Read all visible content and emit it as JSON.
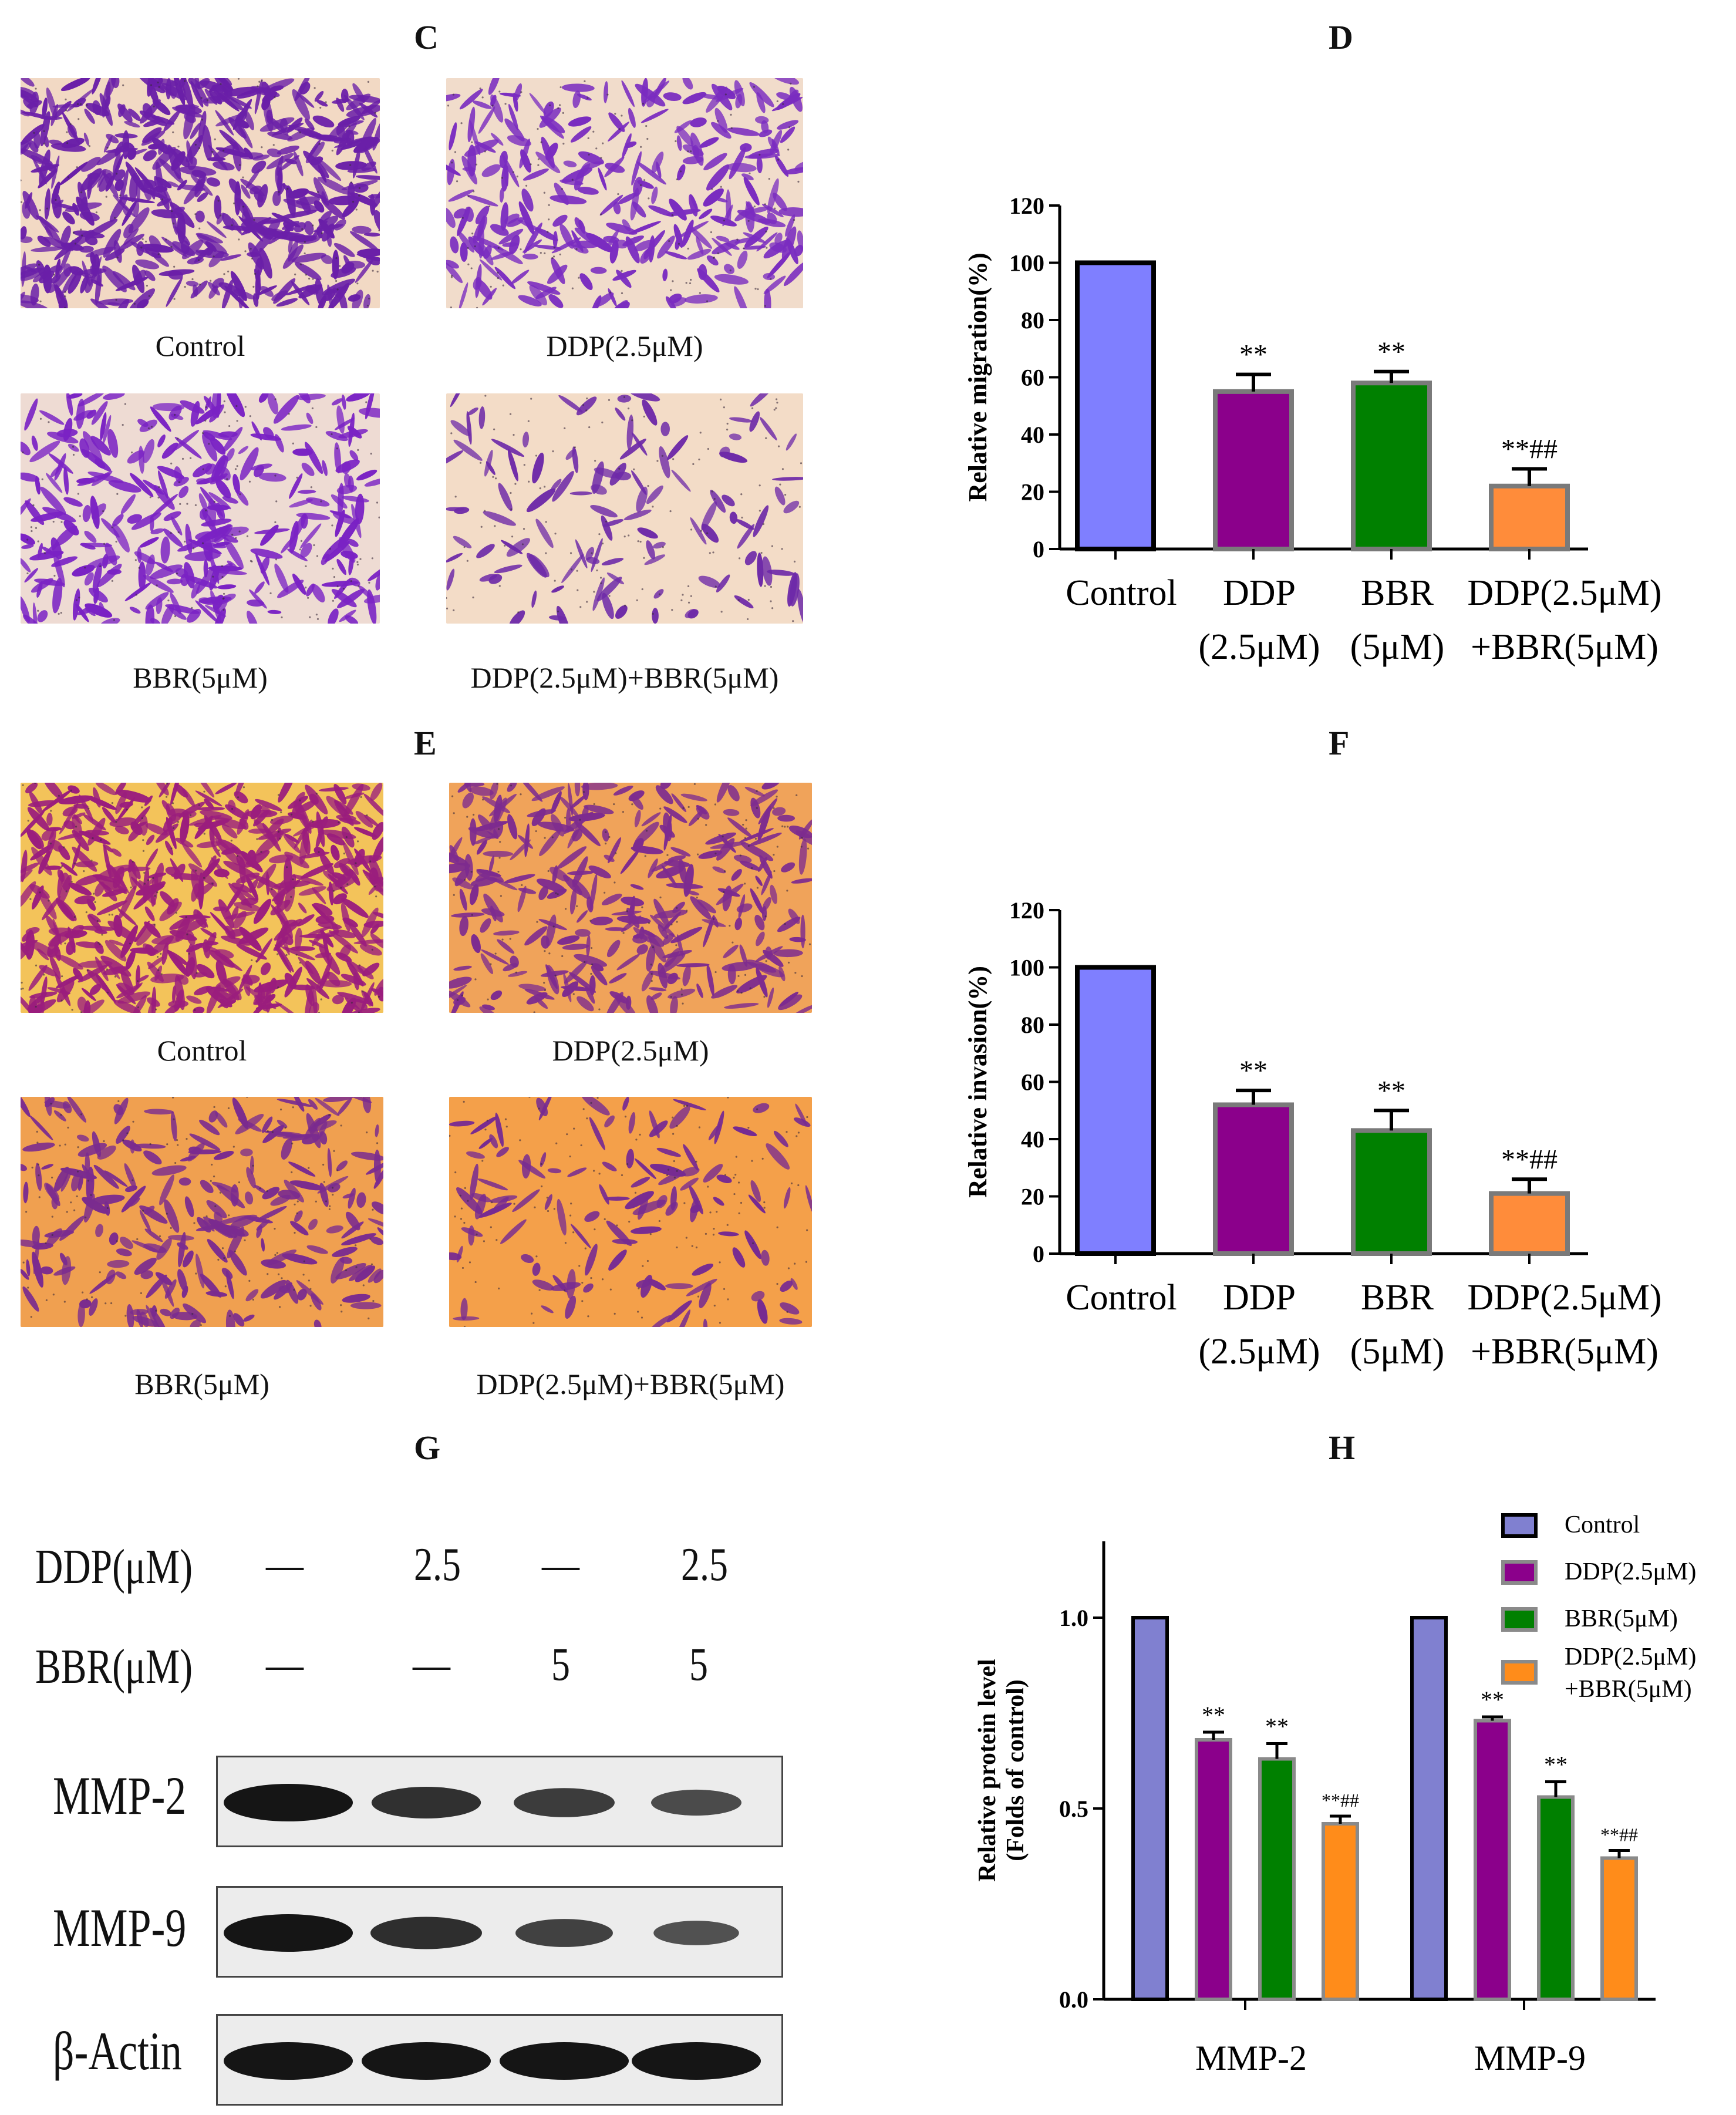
{
  "panels": {
    "C": "C",
    "D": "D",
    "E": "E",
    "F": "F",
    "G": "G",
    "H": "H"
  },
  "micrographs": {
    "migration": [
      {
        "caption": "Control",
        "bg": "#f2d9c4",
        "cell": "#6a1fa8",
        "density": 1.0
      },
      {
        "caption": "DDP(2.5μM)",
        "bg": "#f1dccb",
        "cell": "#7a2cc0",
        "density": 0.55
      },
      {
        "caption": "BBR(5μM)",
        "bg": "#eedbd3",
        "cell": "#7a22c4",
        "density": 0.6
      },
      {
        "caption": "DDP(2.5μM)+BBR(5μM)",
        "bg": "#f3dcc7",
        "cell": "#6e2aa8",
        "density": 0.22
      }
    ],
    "invasion": [
      {
        "caption": "Control",
        "bg": "#f3c35a",
        "cell": "#9a1d7d",
        "density": 1.0
      },
      {
        "caption": "DDP(2.5μM)",
        "bg": "#f0a35a",
        "cell": "#7d2b8f",
        "density": 0.55
      },
      {
        "caption": "BBR(5μM)",
        "bg": "#f0a050",
        "cell": "#7a2b8f",
        "density": 0.45
      },
      {
        "caption": "DDP(2.5μM)+BBR(5μM)",
        "bg": "#f4a04a",
        "cell": "#762a92",
        "density": 0.22
      }
    ]
  },
  "western_blot": {
    "row_labels": [
      "DDP(μM)",
      "BBR(μM)"
    ],
    "ddp_values": [
      "—",
      "2.5",
      "—",
      "2.5"
    ],
    "bbr_values": [
      "—",
      "—",
      "5",
      "5"
    ],
    "proteins": [
      {
        "label": "MMP-2",
        "intensity": [
          1.0,
          0.72,
          0.6,
          0.45
        ]
      },
      {
        "label": "MMP-9",
        "intensity": [
          1.0,
          0.75,
          0.55,
          0.38
        ]
      },
      {
        "label": "β-Actin",
        "intensity": [
          1.0,
          1.0,
          1.0,
          1.0
        ]
      }
    ]
  },
  "chart_data": [
    {
      "panel": "D",
      "type": "bar",
      "ylabel": "Relative migration(%)",
      "ylim": [
        0,
        120
      ],
      "yticks": [
        0,
        20,
        40,
        60,
        80,
        100,
        120
      ],
      "categories": [
        [
          "Control"
        ],
        [
          "DDP",
          "(2.5μM)"
        ],
        [
          "BBR",
          "(5μM)"
        ],
        [
          "DDP(2.5μM)",
          "+BBR(5μM)"
        ]
      ],
      "values": [
        100,
        55,
        58,
        22
      ],
      "errors": [
        0,
        6,
        4,
        6
      ],
      "annotations": [
        "",
        "**",
        "**",
        "**##"
      ],
      "colors": [
        "#7f7fff",
        "#8b008b",
        "#008000",
        "#ff8c3a"
      ]
    },
    {
      "panel": "F",
      "type": "bar",
      "ylabel": "Relative invasion(%)",
      "ylim": [
        0,
        120
      ],
      "yticks": [
        0,
        20,
        40,
        60,
        80,
        100,
        120
      ],
      "categories": [
        [
          "Control"
        ],
        [
          "DDP",
          "(2.5μM)"
        ],
        [
          "BBR",
          "(5μM)"
        ],
        [
          "DDP(2.5μM)",
          "+BBR(5μM)"
        ]
      ],
      "values": [
        100,
        52,
        43,
        21
      ],
      "errors": [
        0,
        5,
        7,
        5
      ],
      "annotations": [
        "",
        "**",
        "**",
        "**##"
      ],
      "colors": [
        "#7f7fff",
        "#8b008b",
        "#008000",
        "#ff8c3a"
      ]
    },
    {
      "panel": "H",
      "type": "bar",
      "ylabel": [
        "Relative protein level",
        "(Folds of control)"
      ],
      "ylim": [
        0,
        1.2
      ],
      "yticks": [
        0.0,
        0.5,
        1.0
      ],
      "ytick_labels": [
        "0.0",
        "0.5",
        "1.0"
      ],
      "categories": [
        "MMP-2",
        "MMP-9"
      ],
      "series": [
        {
          "name": "Control",
          "values": [
            1.0,
            1.0
          ],
          "errors": [
            0,
            0
          ],
          "annotations": [
            "",
            ""
          ],
          "color": "#8080d0"
        },
        {
          "name": "DDP(2.5μM)",
          "values": [
            0.68,
            0.73
          ],
          "errors": [
            0.02,
            0.01
          ],
          "annotations": [
            "**",
            "**"
          ],
          "color": "#8b008b"
        },
        {
          "name": "BBR(5μM)",
          "values": [
            0.63,
            0.53
          ],
          "errors": [
            0.04,
            0.04
          ],
          "annotations": [
            "**",
            "**"
          ],
          "color": "#008000"
        },
        {
          "name": [
            "DDP(2.5μM)",
            "+BBR(5μM)"
          ],
          "values": [
            0.46,
            0.37
          ],
          "errors": [
            0.02,
            0.02
          ],
          "annotations": [
            "**##",
            "**##"
          ],
          "color": "#ff8c1a"
        }
      ]
    }
  ]
}
